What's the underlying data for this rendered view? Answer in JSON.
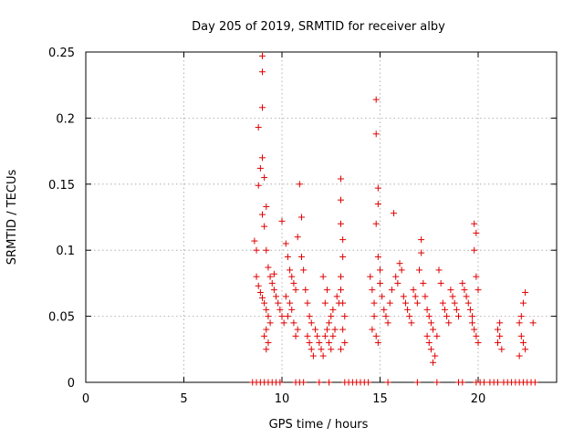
{
  "chart_data": {
    "type": "scatter",
    "title": "Day 205 of 2019, SRMTID for receiver alby",
    "xlabel": "GPS time / hours",
    "ylabel": "SRMTID / TECUs",
    "xlim": [
      0,
      24
    ],
    "ylim": [
      0,
      0.25
    ],
    "xticks": [
      0,
      5,
      10,
      15,
      20
    ],
    "xtick_labels": [
      "0",
      "5",
      "10",
      "15",
      "20"
    ],
    "yticks": [
      0,
      0.05,
      0.1,
      0.15,
      0.2,
      0.25
    ],
    "ytick_labels": [
      "0",
      "0.05",
      "0.1",
      "0.15",
      "0.2",
      "0.25"
    ],
    "grid": true,
    "marker": "+",
    "color": "#e00000",
    "series": [
      {
        "name": "SRMTID",
        "points": [
          [
            8.6,
            0.107
          ],
          [
            8.7,
            0.1
          ],
          [
            8.8,
            0.193
          ],
          [
            8.8,
            0.149
          ],
          [
            8.9,
            0.162
          ],
          [
            9.0,
            0.247
          ],
          [
            9.0,
            0.235
          ],
          [
            9.0,
            0.208
          ],
          [
            9.0,
            0.17
          ],
          [
            9.1,
            0.155
          ],
          [
            9.2,
            0.133
          ],
          [
            9.0,
            0.127
          ],
          [
            9.1,
            0.118
          ],
          [
            9.2,
            0.1
          ],
          [
            9.3,
            0.087
          ],
          [
            8.7,
            0.08
          ],
          [
            8.8,
            0.073
          ],
          [
            8.9,
            0.068
          ],
          [
            9.0,
            0.064
          ],
          [
            9.1,
            0.06
          ],
          [
            9.2,
            0.055
          ],
          [
            9.3,
            0.05
          ],
          [
            9.4,
            0.045
          ],
          [
            9.2,
            0.04
          ],
          [
            9.1,
            0.035
          ],
          [
            9.3,
            0.03
          ],
          [
            9.2,
            0.025
          ],
          [
            9.5,
            0.075
          ],
          [
            9.6,
            0.07
          ],
          [
            9.7,
            0.065
          ],
          [
            9.8,
            0.06
          ],
          [
            9.4,
            0.08
          ],
          [
            9.6,
            0.082
          ],
          [
            9.9,
            0.055
          ],
          [
            10.0,
            0.05
          ],
          [
            10.1,
            0.045
          ],
          [
            10.0,
            0.122
          ],
          [
            10.2,
            0.105
          ],
          [
            10.3,
            0.095
          ],
          [
            10.4,
            0.085
          ],
          [
            10.5,
            0.08
          ],
          [
            10.6,
            0.075
          ],
          [
            10.7,
            0.07
          ],
          [
            10.2,
            0.065
          ],
          [
            10.4,
            0.06
          ],
          [
            10.5,
            0.055
          ],
          [
            10.3,
            0.05
          ],
          [
            10.6,
            0.045
          ],
          [
            10.8,
            0.04
          ],
          [
            10.7,
            0.035
          ],
          [
            10.9,
            0.15
          ],
          [
            11.0,
            0.125
          ],
          [
            10.8,
            0.11
          ],
          [
            11.0,
            0.095
          ],
          [
            11.1,
            0.085
          ],
          [
            11.2,
            0.07
          ],
          [
            11.3,
            0.06
          ],
          [
            11.4,
            0.05
          ],
          [
            11.5,
            0.045
          ],
          [
            11.3,
            0.035
          ],
          [
            11.4,
            0.03
          ],
          [
            11.5,
            0.025
          ],
          [
            11.6,
            0.02
          ],
          [
            11.7,
            0.04
          ],
          [
            11.8,
            0.035
          ],
          [
            11.9,
            0.03
          ],
          [
            12.0,
            0.025
          ],
          [
            12.1,
            0.02
          ],
          [
            12.2,
            0.035
          ],
          [
            12.3,
            0.04
          ],
          [
            12.4,
            0.045
          ],
          [
            12.5,
            0.05
          ],
          [
            12.2,
            0.06
          ],
          [
            12.3,
            0.07
          ],
          [
            12.1,
            0.08
          ],
          [
            12.4,
            0.03
          ],
          [
            12.5,
            0.025
          ],
          [
            12.6,
            0.035
          ],
          [
            12.7,
            0.04
          ],
          [
            12.6,
            0.055
          ],
          [
            12.8,
            0.065
          ],
          [
            12.9,
            0.06
          ],
          [
            13.0,
            0.154
          ],
          [
            13.0,
            0.138
          ],
          [
            13.0,
            0.12
          ],
          [
            13.1,
            0.108
          ],
          [
            13.1,
            0.095
          ],
          [
            13.0,
            0.08
          ],
          [
            13.0,
            0.07
          ],
          [
            13.1,
            0.06
          ],
          [
            13.2,
            0.05
          ],
          [
            13.1,
            0.04
          ],
          [
            13.2,
            0.03
          ],
          [
            13.0,
            0.025
          ],
          [
            14.5,
            0.08
          ],
          [
            14.6,
            0.07
          ],
          [
            14.7,
            0.06
          ],
          [
            14.8,
            0.214
          ],
          [
            14.8,
            0.188
          ],
          [
            14.9,
            0.147
          ],
          [
            14.9,
            0.135
          ],
          [
            14.8,
            0.12
          ],
          [
            14.9,
            0.095
          ],
          [
            15.0,
            0.085
          ],
          [
            15.0,
            0.075
          ],
          [
            14.7,
            0.05
          ],
          [
            14.6,
            0.04
          ],
          [
            14.8,
            0.035
          ],
          [
            14.9,
            0.03
          ],
          [
            15.1,
            0.065
          ],
          [
            15.2,
            0.055
          ],
          [
            15.3,
            0.05
          ],
          [
            15.4,
            0.045
          ],
          [
            15.5,
            0.06
          ],
          [
            15.6,
            0.07
          ],
          [
            15.7,
            0.128
          ],
          [
            15.8,
            0.08
          ],
          [
            15.9,
            0.075
          ],
          [
            16.0,
            0.09
          ],
          [
            16.1,
            0.085
          ],
          [
            16.2,
            0.065
          ],
          [
            16.3,
            0.06
          ],
          [
            16.4,
            0.055
          ],
          [
            16.5,
            0.05
          ],
          [
            16.6,
            0.045
          ],
          [
            16.7,
            0.07
          ],
          [
            16.8,
            0.065
          ],
          [
            16.9,
            0.06
          ],
          [
            17.0,
            0.085
          ],
          [
            17.1,
            0.108
          ],
          [
            17.1,
            0.098
          ],
          [
            17.2,
            0.075
          ],
          [
            17.3,
            0.065
          ],
          [
            17.4,
            0.055
          ],
          [
            17.5,
            0.05
          ],
          [
            17.6,
            0.045
          ],
          [
            17.7,
            0.04
          ],
          [
            17.4,
            0.035
          ],
          [
            17.5,
            0.03
          ],
          [
            17.6,
            0.025
          ],
          [
            17.8,
            0.02
          ],
          [
            17.7,
            0.015
          ],
          [
            17.9,
            0.035
          ],
          [
            18.0,
            0.085
          ],
          [
            18.1,
            0.075
          ],
          [
            18.2,
            0.06
          ],
          [
            18.3,
            0.055
          ],
          [
            18.4,
            0.05
          ],
          [
            18.5,
            0.045
          ],
          [
            18.6,
            0.07
          ],
          [
            18.7,
            0.065
          ],
          [
            18.8,
            0.06
          ],
          [
            18.9,
            0.055
          ],
          [
            19.0,
            0.05
          ],
          [
            19.2,
            0.075
          ],
          [
            19.3,
            0.07
          ],
          [
            19.4,
            0.065
          ],
          [
            19.5,
            0.06
          ],
          [
            19.6,
            0.055
          ],
          [
            19.7,
            0.05
          ],
          [
            19.8,
            0.12
          ],
          [
            19.9,
            0.113
          ],
          [
            19.8,
            0.1
          ],
          [
            19.9,
            0.08
          ],
          [
            20.0,
            0.07
          ],
          [
            19.7,
            0.045
          ],
          [
            19.8,
            0.04
          ],
          [
            19.9,
            0.035
          ],
          [
            20.0,
            0.03
          ],
          [
            21.0,
            0.04
          ],
          [
            21.1,
            0.035
          ],
          [
            21.0,
            0.03
          ],
          [
            21.2,
            0.025
          ],
          [
            21.1,
            0.045
          ],
          [
            22.1,
            0.045
          ],
          [
            22.2,
            0.05
          ],
          [
            22.3,
            0.06
          ],
          [
            22.4,
            0.068
          ],
          [
            22.2,
            0.035
          ],
          [
            22.3,
            0.03
          ],
          [
            22.4,
            0.025
          ],
          [
            22.1,
            0.02
          ],
          [
            22.8,
            0.045
          ],
          [
            8.5,
            0.0
          ],
          [
            8.7,
            0.0
          ],
          [
            8.9,
            0.0
          ],
          [
            9.1,
            0.0
          ],
          [
            9.3,
            0.0
          ],
          [
            9.5,
            0.0
          ],
          [
            9.7,
            0.0
          ],
          [
            9.9,
            0.0
          ],
          [
            10.7,
            0.0
          ],
          [
            10.9,
            0.0
          ],
          [
            11.1,
            0.0
          ],
          [
            11.9,
            0.0
          ],
          [
            12.4,
            0.0
          ],
          [
            13.2,
            0.0
          ],
          [
            13.4,
            0.0
          ],
          [
            13.6,
            0.0
          ],
          [
            13.8,
            0.0
          ],
          [
            14.0,
            0.0
          ],
          [
            14.2,
            0.0
          ],
          [
            14.4,
            0.0
          ],
          [
            15.4,
            0.0
          ],
          [
            16.9,
            0.0
          ],
          [
            17.9,
            0.0
          ],
          [
            19.0,
            0.0
          ],
          [
            19.2,
            0.0
          ],
          [
            19.9,
            0.0
          ],
          [
            20.1,
            0.0
          ],
          [
            20.3,
            0.0
          ],
          [
            20.6,
            0.0
          ],
          [
            20.8,
            0.0
          ],
          [
            21.0,
            0.0
          ],
          [
            21.3,
            0.0
          ],
          [
            21.5,
            0.0
          ],
          [
            21.7,
            0.0
          ],
          [
            21.9,
            0.0
          ],
          [
            22.1,
            0.0
          ],
          [
            22.3,
            0.0
          ],
          [
            22.5,
            0.0
          ],
          [
            22.7,
            0.0
          ],
          [
            22.9,
            0.0
          ]
        ]
      }
    ]
  }
}
